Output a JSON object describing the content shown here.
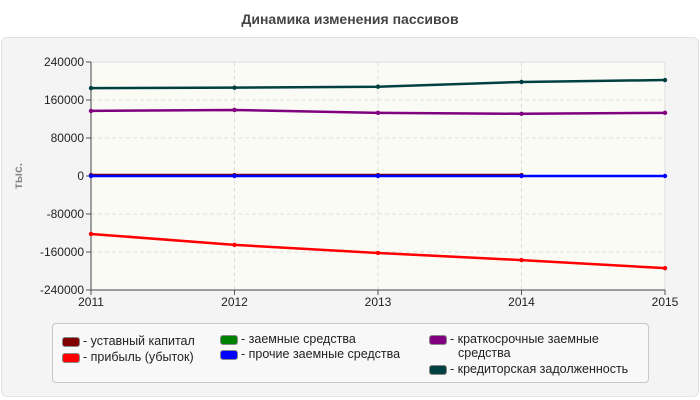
{
  "chart_data": {
    "type": "line",
    "title": "Динамика изменения пассивов",
    "ylabel": "тыс.",
    "xlabel": "",
    "categories": [
      "2011",
      "2012",
      "2013",
      "2014",
      "2015"
    ],
    "ylim": [
      -240000,
      240000
    ],
    "yticks": [
      "240000",
      "160000",
      "80000",
      "0",
      "-80000",
      "-160000",
      "-240000"
    ],
    "grid": true,
    "legend_position": "bottom",
    "series": [
      {
        "name": "уставный капитал",
        "label": "- уставный капитал",
        "color": "#800000",
        "values": [
          2000,
          2000,
          2000,
          2000,
          null
        ]
      },
      {
        "name": "прибыль (убыток)",
        "label": "- прибыль (убыток)",
        "color": "#ff0000",
        "values": [
          -122000,
          -145000,
          -162000,
          -177000,
          -194000
        ]
      },
      {
        "name": "заемные средства",
        "label": "- заемные средства",
        "color": "#008000",
        "values": [
          null,
          null,
          null,
          null,
          null
        ]
      },
      {
        "name": "прочие заемные средства",
        "label": "- прочие заемные средства",
        "color": "#0000ff",
        "values": [
          0,
          0,
          0,
          0,
          0
        ]
      },
      {
        "name": "краткосрочные заемные средства",
        "label": "- краткосрочные заемные",
        "label2": "средства",
        "color": "#800080",
        "values": [
          137000,
          139000,
          133000,
          131000,
          133000
        ]
      },
      {
        "name": "кредиторская задолженность",
        "label": "- кредиторская задолженность",
        "color": "#004040",
        "values": [
          185000,
          186000,
          188000,
          198000,
          202000
        ]
      }
    ]
  }
}
